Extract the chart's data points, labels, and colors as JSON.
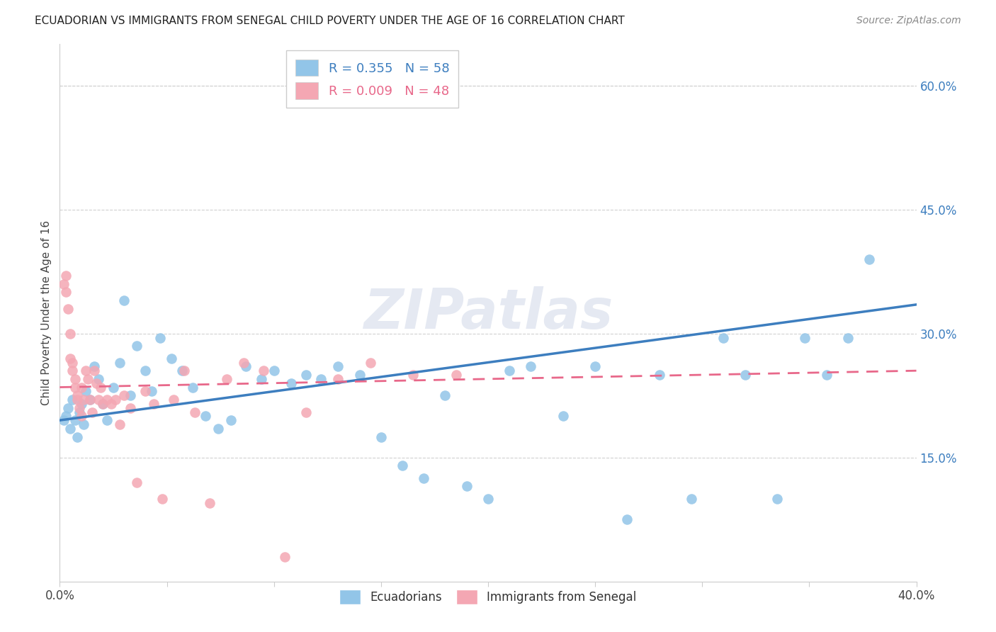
{
  "title": "ECUADORIAN VS IMMIGRANTS FROM SENEGAL CHILD POVERTY UNDER THE AGE OF 16 CORRELATION CHART",
  "source": "Source: ZipAtlas.com",
  "ylabel": "Child Poverty Under the Age of 16",
  "x_min": 0.0,
  "x_max": 0.4,
  "y_min": 0.0,
  "y_max": 0.65,
  "legend_blue_r": "0.355",
  "legend_blue_n": "58",
  "legend_pink_r": "0.009",
  "legend_pink_n": "48",
  "blue_color": "#92c5e8",
  "blue_line_color": "#3d7ebf",
  "pink_color": "#f4a7b3",
  "pink_line_color": "#e8688a",
  "grid_color": "#d0d0d0",
  "background_color": "#ffffff",
  "ecu_x": [
    0.002,
    0.003,
    0.004,
    0.005,
    0.006,
    0.007,
    0.008,
    0.009,
    0.01,
    0.011,
    0.012,
    0.014,
    0.016,
    0.018,
    0.02,
    0.022,
    0.025,
    0.028,
    0.03,
    0.033,
    0.036,
    0.04,
    0.043,
    0.047,
    0.052,
    0.057,
    0.062,
    0.068,
    0.074,
    0.08,
    0.087,
    0.094,
    0.1,
    0.108,
    0.115,
    0.122,
    0.13,
    0.14,
    0.15,
    0.16,
    0.17,
    0.18,
    0.19,
    0.2,
    0.21,
    0.22,
    0.235,
    0.25,
    0.265,
    0.28,
    0.295,
    0.31,
    0.32,
    0.335,
    0.348,
    0.358,
    0.368,
    0.378
  ],
  "ecu_y": [
    0.195,
    0.2,
    0.21,
    0.185,
    0.22,
    0.195,
    0.175,
    0.205,
    0.215,
    0.19,
    0.23,
    0.22,
    0.26,
    0.245,
    0.215,
    0.195,
    0.235,
    0.265,
    0.34,
    0.225,
    0.285,
    0.255,
    0.23,
    0.295,
    0.27,
    0.255,
    0.235,
    0.2,
    0.185,
    0.195,
    0.26,
    0.245,
    0.255,
    0.24,
    0.25,
    0.245,
    0.26,
    0.25,
    0.175,
    0.14,
    0.125,
    0.225,
    0.115,
    0.1,
    0.255,
    0.26,
    0.2,
    0.26,
    0.075,
    0.25,
    0.1,
    0.295,
    0.25,
    0.1,
    0.295,
    0.25,
    0.295,
    0.39
  ],
  "sen_x": [
    0.002,
    0.003,
    0.003,
    0.004,
    0.005,
    0.005,
    0.006,
    0.006,
    0.007,
    0.007,
    0.008,
    0.008,
    0.009,
    0.01,
    0.01,
    0.011,
    0.012,
    0.013,
    0.014,
    0.015,
    0.016,
    0.017,
    0.018,
    0.019,
    0.02,
    0.022,
    0.024,
    0.026,
    0.028,
    0.03,
    0.033,
    0.036,
    0.04,
    0.044,
    0.048,
    0.053,
    0.058,
    0.063,
    0.07,
    0.078,
    0.086,
    0.095,
    0.105,
    0.115,
    0.13,
    0.145,
    0.165,
    0.185
  ],
  "sen_y": [
    0.36,
    0.35,
    0.37,
    0.33,
    0.3,
    0.27,
    0.265,
    0.255,
    0.245,
    0.235,
    0.225,
    0.22,
    0.21,
    0.235,
    0.2,
    0.22,
    0.255,
    0.245,
    0.22,
    0.205,
    0.255,
    0.24,
    0.22,
    0.235,
    0.215,
    0.22,
    0.215,
    0.22,
    0.19,
    0.225,
    0.21,
    0.12,
    0.23,
    0.215,
    0.1,
    0.22,
    0.255,
    0.205,
    0.095,
    0.245,
    0.265,
    0.255,
    0.03,
    0.205,
    0.245,
    0.265,
    0.25,
    0.25
  ],
  "ecu_line_x0": 0.0,
  "ecu_line_x1": 0.4,
  "ecu_line_y0": 0.195,
  "ecu_line_y1": 0.335,
  "sen_line_x0": 0.0,
  "sen_line_x1": 0.4,
  "sen_line_y0": 0.235,
  "sen_line_y1": 0.255
}
